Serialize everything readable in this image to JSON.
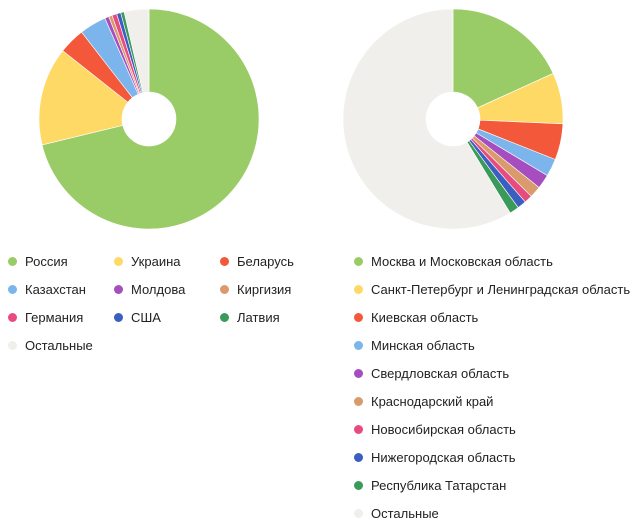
{
  "chart_data": [
    {
      "type": "pie",
      "donut": true,
      "slices": [
        {
          "label": "Россия",
          "value": 70.5,
          "color": "#99cc66"
        },
        {
          "label": "Украина",
          "value": 14.3,
          "color": "#ffd966"
        },
        {
          "label": "Беларусь",
          "value": 3.8,
          "color": "#f4583a"
        },
        {
          "label": "Казахстан",
          "value": 3.9,
          "color": "#7cb5ec"
        },
        {
          "label": "Молдова",
          "value": 0.6,
          "color": "#a64ebf"
        },
        {
          "label": "Киргизия",
          "value": 0.5,
          "color": "#d99a6c"
        },
        {
          "label": "Германия",
          "value": 0.7,
          "color": "#e84c7f"
        },
        {
          "label": "США",
          "value": 0.6,
          "color": "#3b5fc0"
        },
        {
          "label": "Латвия",
          "value": 0.5,
          "color": "#3a9a5a"
        },
        {
          "label": "Остальные",
          "value": 3.6,
          "color": "#f0efeb"
        }
      ],
      "legend_columns": 3
    },
    {
      "type": "pie",
      "donut": true,
      "slices": [
        {
          "label": "Москва и Московская область",
          "value": 18.2,
          "color": "#99cc66"
        },
        {
          "label": "Санкт-Петербург и Ленинградская область",
          "value": 7.5,
          "color": "#ffd966"
        },
        {
          "label": "Киевская область",
          "value": 5.3,
          "color": "#f4583a"
        },
        {
          "label": "Минская область",
          "value": 2.6,
          "color": "#7cb5ec"
        },
        {
          "label": "Свердловская область",
          "value": 2.1,
          "color": "#a64ebf"
        },
        {
          "label": "Краснодарский край",
          "value": 1.7,
          "color": "#d99a6c"
        },
        {
          "label": "Новосибирская область",
          "value": 1.2,
          "color": "#e84c7f"
        },
        {
          "label": "Нижегородская область",
          "value": 1.3,
          "color": "#3b5fc0"
        },
        {
          "label": "Республика Татарстан",
          "value": 1.4,
          "color": "#3a9a5a"
        },
        {
          "label": "Остальные",
          "value": 58.7,
          "color": "#f0efeb"
        }
      ],
      "legend_columns": 1
    }
  ]
}
